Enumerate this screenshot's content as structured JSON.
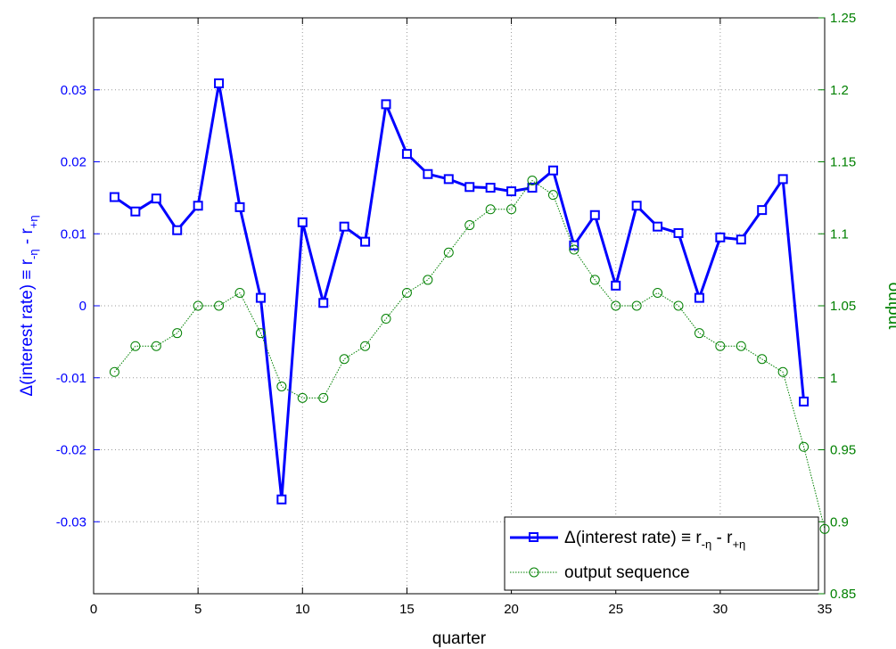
{
  "chart_data": {
    "type": "line",
    "xlabel": "quarter",
    "ylabel_left": {
      "text": "Δ(interest rate) ≡ r",
      "sub1": "-η",
      "mid": " - r",
      "sub2": "+η"
    },
    "ylabel_right": "output",
    "xlim": [
      0,
      35
    ],
    "ylim_left": [
      -0.04,
      0.04
    ],
    "ylim_right": [
      0.85,
      1.25
    ],
    "grid": true,
    "legend_position": "bottom-right",
    "x_ticks": [
      "0",
      "5",
      "10",
      "15",
      "20",
      "25",
      "30",
      "35"
    ],
    "y_left_ticks": [
      "-0.03",
      "-0.02",
      "-0.01",
      "0",
      "0.01",
      "0.02",
      "0.03"
    ],
    "y_right_ticks": [
      "0.85",
      "0.9",
      "0.95",
      "1",
      "1.05",
      "1.1",
      "1.15",
      "1.2",
      "1.25"
    ],
    "series": [
      {
        "name": "Δ(interest rate) ≡ r-η - r+η",
        "legend": {
          "text": "Δ(interest rate) ≡ r",
          "sub1": "-η",
          "mid": " - r",
          "sub2": "+η"
        },
        "axis": "left",
        "color": "#0000ff",
        "marker": "square",
        "x": [
          1,
          2,
          3,
          4,
          5,
          6,
          7,
          8,
          9,
          10,
          11,
          12,
          13,
          14,
          15,
          16,
          17,
          18,
          19,
          20,
          21,
          22,
          23,
          24,
          25,
          26,
          27,
          28,
          29,
          30,
          31,
          32,
          33,
          34
        ],
        "values": [
          0.0151,
          0.0131,
          0.0149,
          0.0105,
          0.0139,
          0.0309,
          0.0137,
          0.0011,
          -0.0269,
          0.0116,
          0.0004,
          0.011,
          0.0089,
          0.028,
          0.0211,
          0.0183,
          0.0176,
          0.0165,
          0.0164,
          0.0159,
          0.0164,
          0.0188,
          0.0084,
          0.0126,
          0.0028,
          0.0139,
          0.011,
          0.0101,
          0.0011,
          0.0095,
          0.0092,
          0.0133,
          0.0176,
          -0.0133
        ]
      },
      {
        "name": "output sequence",
        "legend": {
          "text": "output sequence"
        },
        "axis": "right",
        "color": "#008000",
        "marker": "circle",
        "x": [
          1,
          2,
          3,
          4,
          5,
          6,
          7,
          8,
          9,
          10,
          11,
          12,
          13,
          14,
          15,
          16,
          17,
          18,
          19,
          20,
          21,
          22,
          23,
          24,
          25,
          26,
          27,
          28,
          29,
          30,
          31,
          32,
          33,
          34,
          35
        ],
        "values": [
          1.004,
          1.022,
          1.022,
          1.031,
          1.05,
          1.05,
          1.059,
          1.031,
          0.994,
          0.986,
          0.986,
          1.013,
          1.022,
          1.041,
          1.059,
          1.068,
          1.087,
          1.106,
          1.117,
          1.117,
          1.137,
          1.127,
          1.089,
          1.068,
          1.05,
          1.05,
          1.059,
          1.05,
          1.031,
          1.022,
          1.022,
          1.013,
          1.004,
          0.952,
          0.895
        ]
      }
    ]
  }
}
